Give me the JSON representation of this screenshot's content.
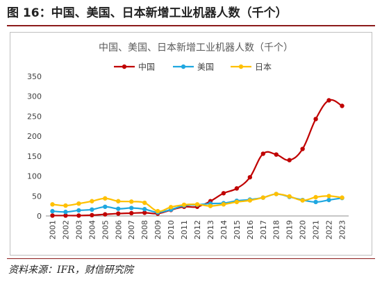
{
  "figure": {
    "title": "图 16：中国、美国、日本新增工业机器人数（千个）",
    "source": "资料来源：IFR，财信研究院"
  },
  "chart_data": {
    "type": "line",
    "title": "中国、美国、日本新增工业机器人数（千个）",
    "xlabel": "",
    "ylabel": "",
    "x": [
      "2001",
      "2002",
      "2003",
      "2004",
      "2005",
      "2006",
      "2007",
      "2008",
      "2009",
      "2010",
      "2011",
      "2012",
      "2013",
      "2014",
      "2015",
      "2016",
      "2017",
      "2018",
      "2019",
      "2020",
      "2021",
      "2022",
      "2023"
    ],
    "ylim": [
      0,
      350
    ],
    "yticks": [
      0,
      50,
      100,
      150,
      200,
      250,
      300,
      350
    ],
    "grid": false,
    "legend_position": "top-center",
    "series": [
      {
        "name": "中国",
        "color": "#c00000",
        "values": [
          1,
          1,
          1,
          2,
          4,
          6,
          7,
          8,
          6,
          15,
          23,
          23,
          37,
          57,
          69,
          97,
          156,
          154,
          140,
          168,
          243,
          290,
          276
        ]
      },
      {
        "name": "美国",
        "color": "#1fa7e0",
        "values": [
          12,
          10,
          14,
          16,
          23,
          18,
          20,
          17,
          9,
          16,
          26,
          28,
          31,
          32,
          38,
          41,
          46,
          55,
          48,
          40,
          35,
          40,
          45
        ]
      },
      {
        "name": "日本",
        "color": "#ffc000",
        "values": [
          29,
          26,
          31,
          37,
          44,
          37,
          36,
          33,
          12,
          22,
          28,
          29,
          25,
          29,
          35,
          39,
          46,
          55,
          49,
          39,
          47,
          50,
          46
        ]
      }
    ]
  }
}
